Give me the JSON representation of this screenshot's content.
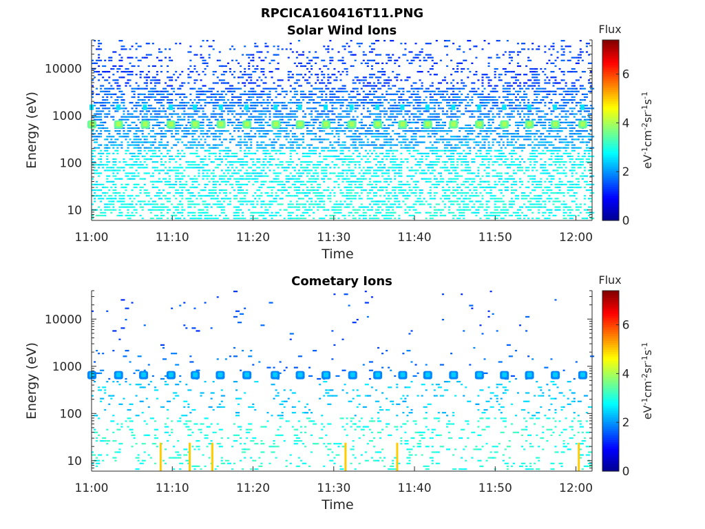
{
  "figure_title": "RPCICA160416T11.PNG",
  "colorscale": [
    "#00008f",
    "#0000ff",
    "#0080ff",
    "#00ffff",
    "#80ff80",
    "#ffff00",
    "#ff8000",
    "#ff0000",
    "#800000"
  ],
  "chart_data": [
    {
      "type": "heatmap",
      "title": "Solar Wind Ions",
      "xlabel": "Time",
      "ylabel": "Energy (eV)",
      "x_range": [
        "11:00",
        "12:02"
      ],
      "x_ticks": [
        "11:00",
        "11:10",
        "11:20",
        "11:30",
        "11:40",
        "11:50",
        "12:00"
      ],
      "y_scale": "log",
      "y_range": [
        6,
        40000
      ],
      "y_ticks": [
        "10",
        "100",
        "1000",
        "10000"
      ],
      "colorbar": {
        "title": "Flux",
        "unit_label": "eV-1cm-2sr-1s-1",
        "range": [
          0,
          7.4
        ],
        "ticks": [
          "0",
          "2",
          "4",
          "6"
        ]
      },
      "features": {
        "peak_energy_eV": 650,
        "secondary_energy_eV": 1500,
        "peak_flux": 3.5,
        "secondary_flux": 2.6,
        "peak_times_min": [
          0,
          3.3,
          6.6,
          9.8,
          12.8,
          16.0,
          19.2,
          22.8,
          25.8,
          29.0,
          32.2,
          35.4,
          38.5,
          41.6,
          44.8,
          48.0,
          51.1,
          54.2,
          57.4,
          60.8
        ],
        "noise_high_flux": 1.4,
        "noise_mid_flux": 2.2,
        "noise_low_flux": 2.9
      }
    },
    {
      "type": "heatmap",
      "title": "Cometary Ions",
      "xlabel": "Time",
      "ylabel": "Energy (eV)",
      "x_range": [
        "11:00",
        "12:02"
      ],
      "x_ticks": [
        "11:00",
        "11:10",
        "11:20",
        "11:30",
        "11:40",
        "11:50",
        "12:00"
      ],
      "y_scale": "log",
      "y_range": [
        6,
        40000
      ],
      "y_ticks": [
        "10",
        "100",
        "1000",
        "10000"
      ],
      "colorbar": {
        "title": "Flux",
        "unit_label": "eV-1cm-2sr-1s-1",
        "range": [
          0,
          7.4
        ],
        "ticks": [
          "0",
          "2",
          "4",
          "6"
        ]
      },
      "features": {
        "peak_energy_eV": 650,
        "peak_flux": 1.9,
        "peak_times_min": [
          0,
          3.3,
          6.4,
          9.8,
          12.8,
          15.9,
          19.2,
          22.7,
          25.8,
          29.0,
          32.3,
          35.4,
          38.5,
          41.6,
          44.8,
          48.0,
          51.1,
          54.2,
          57.4,
          60.8
        ],
        "noise_high_flux": 1.5,
        "noise_mid_flux": 2.4,
        "noise_low_flux": 3.0,
        "low_energy_bursts_min": [
          8.6,
          12.2,
          15.0,
          31.5,
          37.9,
          60.4
        ],
        "burst_flux": 5.0
      }
    }
  ]
}
